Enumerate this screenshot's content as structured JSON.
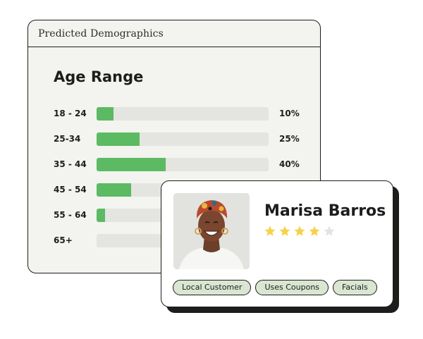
{
  "window": {
    "title": "Predicted Demographics",
    "section_title": "Age Range",
    "accent_color": "#5cba62",
    "age_ranges": [
      {
        "label": "18 - 24",
        "percent": 10,
        "percent_label": "10%"
      },
      {
        "label": "25-34",
        "percent": 25,
        "percent_label": "25%"
      },
      {
        "label": "35 - 44",
        "percent": 40,
        "percent_label": "40%"
      },
      {
        "label": "45 - 54",
        "percent": 20,
        "percent_label": ""
      },
      {
        "label": "55 - 64",
        "percent": 5,
        "percent_label": ""
      },
      {
        "label": "65+",
        "percent": 0,
        "percent_label": ""
      }
    ]
  },
  "profile": {
    "name": "Marisa Barros",
    "rating": 4,
    "rating_max": 5,
    "star_color": "#f6d24a",
    "star_empty_color": "#e3e3e3",
    "photo_icon": "person-photo",
    "tags": [
      "Local Customer",
      "Uses Coupons",
      "Facials"
    ],
    "tag_color": "#d9e7d2"
  }
}
